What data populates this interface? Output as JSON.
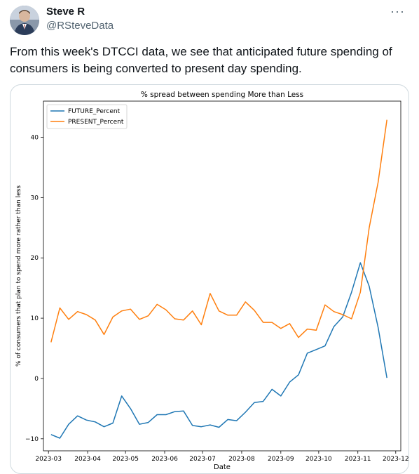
{
  "user": {
    "display_name": "Steve R",
    "handle": "@RSteveData",
    "more_label": "···"
  },
  "tweet": {
    "text": "From this week's DTCCI data, we see that anticipated future spending of consumers is being converted to present day spending."
  },
  "colors": {
    "future": "#1f77b4",
    "present": "#ff7f0e"
  },
  "chart_data": {
    "type": "line",
    "title": "% spread between spending More than Less",
    "xlabel": "Date",
    "ylabel": "% of consumers that plan to spend more rather than less",
    "legend_position": "top-left",
    "grid": false,
    "xlim": [
      "2023-02-25",
      "2023-12-05"
    ],
    "ylim": [
      -12,
      46
    ],
    "x_ticks": [
      "2023-03",
      "2023-04",
      "2023-05",
      "2023-06",
      "2023-07",
      "2023-08",
      "2023-09",
      "2023-10",
      "2023-11",
      "2023-12"
    ],
    "y_ticks": [
      -10,
      0,
      10,
      20,
      30,
      40
    ],
    "dates": [
      "2023-03-03",
      "2023-03-10",
      "2023-03-17",
      "2023-03-24",
      "2023-03-31",
      "2023-04-07",
      "2023-04-14",
      "2023-04-21",
      "2023-04-28",
      "2023-05-05",
      "2023-05-12",
      "2023-05-19",
      "2023-05-26",
      "2023-06-02",
      "2023-06-09",
      "2023-06-16",
      "2023-06-23",
      "2023-06-30",
      "2023-07-07",
      "2023-07-14",
      "2023-07-21",
      "2023-07-28",
      "2023-08-04",
      "2023-08-11",
      "2023-08-18",
      "2023-08-25",
      "2023-09-01",
      "2023-09-08",
      "2023-09-15",
      "2023-09-22",
      "2023-09-29",
      "2023-10-06",
      "2023-10-13",
      "2023-10-20",
      "2023-10-27",
      "2023-11-03",
      "2023-11-10",
      "2023-11-17",
      "2023-11-24"
    ],
    "series": [
      {
        "name": "FUTURE_Percent",
        "values": [
          -9.3,
          -9.9,
          -7.6,
          -6.2,
          -6.9,
          -7.2,
          -8.0,
          -7.4,
          -2.9,
          -5.0,
          -7.6,
          -7.3,
          -6.0,
          -6.0,
          -5.5,
          -5.4,
          -7.8,
          -8.0,
          -7.7,
          -8.1,
          -6.8,
          -7.0,
          -5.6,
          -4.0,
          -3.8,
          -1.8,
          -2.9,
          -0.6,
          0.6,
          4.2,
          4.8,
          5.4,
          8.6,
          10.2,
          14.3,
          19.2,
          15.3,
          8.5,
          0.1
        ]
      },
      {
        "name": "PRESENT_Percent",
        "values": [
          6.0,
          11.7,
          9.8,
          11.1,
          10.6,
          9.7,
          7.3,
          10.2,
          11.2,
          11.5,
          9.8,
          10.4,
          12.3,
          11.4,
          9.9,
          9.7,
          11.2,
          8.9,
          14.1,
          11.2,
          10.5,
          10.5,
          12.7,
          11.3,
          9.3,
          9.3,
          8.3,
          9.1,
          6.8,
          8.2,
          8.0,
          12.2,
          11.1,
          10.6,
          9.9,
          14.3,
          25.0,
          32.5,
          42.9
        ]
      }
    ]
  }
}
